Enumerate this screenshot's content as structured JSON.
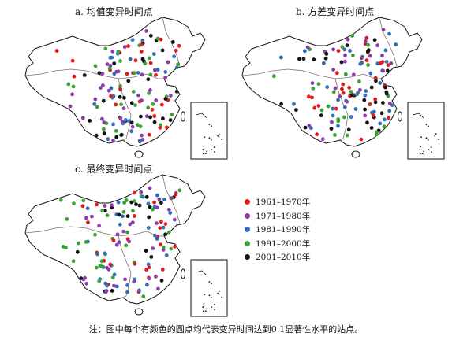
{
  "panels": [
    {
      "key": "a",
      "title": "a. 均值变异时间点"
    },
    {
      "key": "b",
      "title": "b. 方差变异时间点"
    },
    {
      "key": "c",
      "title": "c. 最终变异时间点"
    }
  ],
  "legend": [
    {
      "label": "1961–1970年",
      "color": "#e41a1c"
    },
    {
      "label": "1971–1980年",
      "color": "#8e3cab"
    },
    {
      "label": "1981–1990年",
      "color": "#2f6fb8"
    },
    {
      "label": "1991–2000年",
      "color": "#3aa335"
    },
    {
      "label": "2001–2010年",
      "color": "#111111"
    }
  ],
  "note": "注：图中每个有颜色的圆点均代表变异时间达到0.1显著性水平的站点。",
  "map_style": {
    "outline_color": "#111111",
    "boundary_color": "#8a6a6a",
    "inset_box_color": "#111111"
  }
}
